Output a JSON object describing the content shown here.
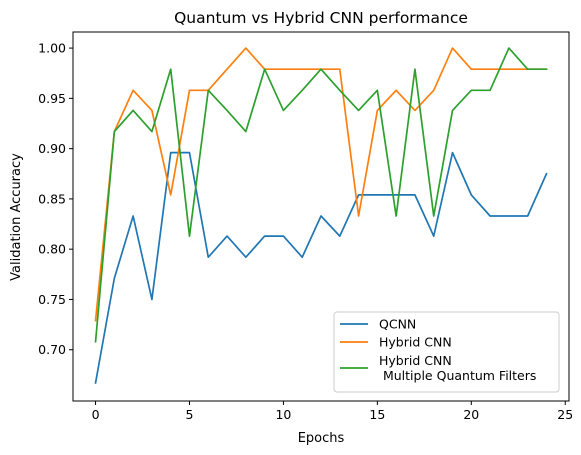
{
  "chart_data": {
    "type": "line",
    "title": "Quantum vs Hybrid CNN performance",
    "xlabel": "Epochs",
    "ylabel": "Validation Accuracy",
    "xlim": [
      -1.2,
      25.2
    ],
    "ylim": [
      0.649,
      1.016
    ],
    "xticks": [
      0,
      5,
      10,
      15,
      20,
      25
    ],
    "xtick_labels": [
      "0",
      "5",
      "10",
      "15",
      "20",
      "25"
    ],
    "yticks": [
      0.7,
      0.75,
      0.8,
      0.85,
      0.9,
      0.95,
      1.0
    ],
    "ytick_labels": [
      "0.70",
      "0.75",
      "0.80",
      "0.85",
      "0.90",
      "0.95",
      "1.00"
    ],
    "grid": false,
    "legend_position": "lower-right",
    "x": [
      0,
      1,
      2,
      3,
      4,
      5,
      6,
      7,
      8,
      9,
      10,
      11,
      12,
      13,
      14,
      15,
      16,
      17,
      18,
      19,
      20,
      21,
      22,
      23,
      24
    ],
    "series": [
      {
        "name": "QCNN",
        "color": "#1f77b4",
        "values": [
          0.667,
          0.771,
          0.833,
          0.75,
          0.896,
          0.896,
          0.792,
          0.813,
          0.792,
          0.813,
          0.813,
          0.792,
          0.833,
          0.813,
          0.854,
          0.854,
          0.854,
          0.854,
          0.813,
          0.896,
          0.854,
          0.833,
          0.833,
          0.833,
          0.875
        ]
      },
      {
        "name": "Hybrid CNN",
        "color": "#ff7f0e",
        "values": [
          0.729,
          0.917,
          0.958,
          0.938,
          0.854,
          0.958,
          0.958,
          0.979,
          1.0,
          0.979,
          0.979,
          0.979,
          0.979,
          0.979,
          0.833,
          0.938,
          0.958,
          0.938,
          0.958,
          1.0,
          0.979,
          0.979,
          0.979,
          0.979,
          0.979
        ]
      },
      {
        "name": "Hybrid CNN\n Multiple Quantum Filters",
        "color": "#2ca02c",
        "values": [
          0.708,
          0.917,
          0.938,
          0.917,
          0.979,
          0.813,
          0.958,
          0.938,
          0.917,
          0.979,
          0.938,
          0.958,
          0.979,
          0.958,
          0.938,
          0.958,
          0.833,
          0.979,
          0.833,
          0.938,
          0.958,
          0.958,
          1.0,
          0.979,
          0.979
        ]
      }
    ]
  }
}
